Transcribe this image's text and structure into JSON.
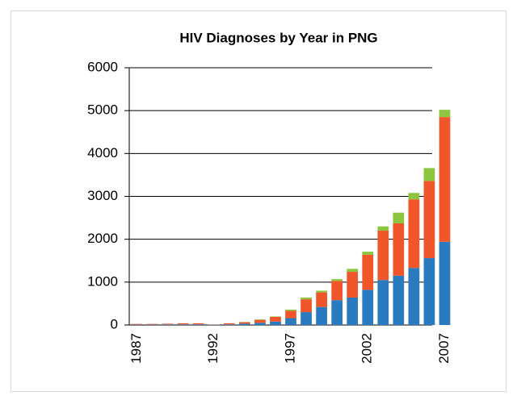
{
  "chart_data": {
    "type": "stacked_bar",
    "title": "HIV Diagnoses by Year in PNG",
    "categories": [
      "1987",
      null,
      null,
      null,
      null,
      "1992",
      null,
      null,
      null,
      null,
      "1997",
      null,
      null,
      null,
      null,
      "2002",
      null,
      null,
      null,
      null,
      "2007"
    ],
    "series": [
      {
        "color": "#2a7ac0",
        "values": [
          10,
          10,
          12,
          15,
          15,
          5,
          15,
          30,
          50,
          80,
          160,
          300,
          420,
          580,
          640,
          820,
          1050,
          1150,
          1330,
          1560,
          1940
        ]
      },
      {
        "color": "#f0562a",
        "values": [
          15,
          15,
          18,
          25,
          25,
          5,
          25,
          35,
          70,
          110,
          170,
          300,
          340,
          450,
          600,
          820,
          1150,
          1220,
          1600,
          1800,
          2910
        ]
      },
      {
        "color": "#8cc63f",
        "values": [
          0,
          0,
          0,
          0,
          0,
          0,
          0,
          5,
          10,
          10,
          30,
          40,
          40,
          40,
          70,
          70,
          100,
          250,
          150,
          300,
          170
        ]
      }
    ],
    "ylim": [
      0,
      6000
    ],
    "yticks": [
      0,
      1000,
      2000,
      3000,
      4000,
      5000,
      6000
    ],
    "grid": true
  }
}
